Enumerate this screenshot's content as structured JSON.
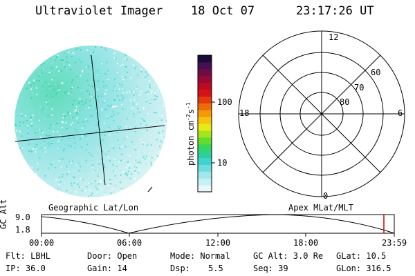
{
  "header": {
    "title": "Ultraviolet Imager",
    "date": "18 Oct 07",
    "time": "23:17:26 UT"
  },
  "colorbar": {
    "unit_label": "photon cm",
    "unit_sup1": "-2",
    "unit_mid": "s",
    "unit_sup2": "-1",
    "tick_100": "100",
    "tick_10": "10",
    "colors": [
      "#e8f8fa",
      "#c6f0f3",
      "#9fe8ec",
      "#6fdde0",
      "#40d3cf",
      "#2bd19a",
      "#38d65e",
      "#63dc2d",
      "#a4e51b",
      "#e6ea14",
      "#f6c40e",
      "#f49a0a",
      "#ee6b0a",
      "#e23a0d",
      "#d31316",
      "#bb0a22",
      "#980a33",
      "#6e0d45",
      "#440f55",
      "#1b0b3a"
    ]
  },
  "polar": {
    "lat_labels": [
      "60",
      "70",
      "80"
    ],
    "mlt_labels": {
      "top": "12",
      "left": "18",
      "right": "6",
      "bottom": "0"
    }
  },
  "panel_labels": {
    "left": "Geographic Lat/Lon",
    "right": "Apex MLat/MLT"
  },
  "altitude_plot": {
    "ylabel": "GC Alt",
    "ytick_top": "9.0",
    "ytick_bottom": "1.8",
    "xticks": [
      "00:00",
      "06:00",
      "12:00",
      "18:00",
      "23:59"
    ],
    "marker_color": "#cc0000"
  },
  "status": {
    "flt": "Flt: LBHL",
    "ip": "IP: 36.0",
    "door": "Door: Open",
    "gain": "Gain: 14",
    "mode": "Mode: Normal",
    "dsp_label": "Dsp:",
    "dsp_value": "5.5",
    "gcalt": "GC Alt: 3.0 Re",
    "seq": "Seq: 39",
    "glat": "GLat:  10.5",
    "glon": "GLon: 316.5"
  }
}
